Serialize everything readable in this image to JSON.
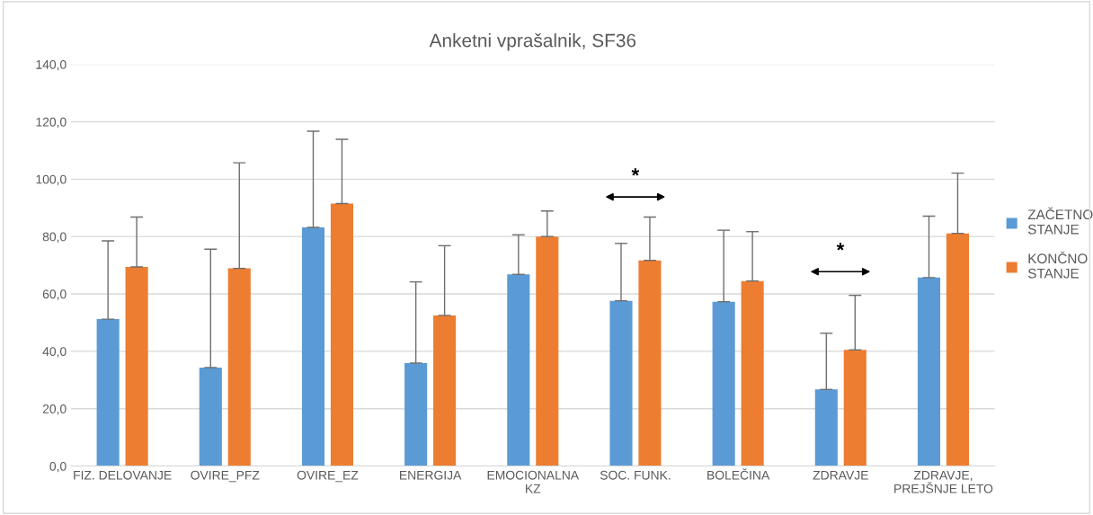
{
  "chart_data": {
    "type": "bar",
    "title": "Anketni vprašalnik, SF36",
    "categories": [
      "FIZ. DELOVANJE",
      "OVIRE_PFZ",
      "OVIRE_EZ",
      "ENERGIJA",
      "EMOCIONALNA\nKZ",
      "SOC. FUNK.",
      "BOLEČINA",
      "ZDRAVJE",
      "ZDRAVJE,\nPREJŠNJE LETO"
    ],
    "series": [
      {
        "name": "ZAČETNO\nSTANJE",
        "color": "#5b9bd5",
        "values": [
          51.2,
          34.3,
          83.2,
          35.9,
          66.8,
          57.6,
          57.3,
          26.7,
          65.7
        ],
        "errors": [
          [
            51.2,
            78.5
          ],
          [
            34.3,
            75.6
          ],
          [
            83.2,
            116.7
          ],
          [
            35.9,
            64.2
          ],
          [
            66.8,
            80.6
          ],
          [
            57.6,
            77.6
          ],
          [
            57.3,
            82.2
          ],
          [
            26.7,
            46.3
          ],
          [
            65.7,
            87.1
          ]
        ]
      },
      {
        "name": "KONČNO\nSTANJE",
        "color": "#ed7d31",
        "values": [
          69.4,
          68.9,
          91.5,
          52.5,
          80.0,
          71.7,
          64.5,
          40.5,
          81.1
        ],
        "errors": [
          [
            69.4,
            86.8
          ],
          [
            68.9,
            105.7
          ],
          [
            91.5,
            113.9
          ],
          [
            52.5,
            76.8
          ],
          [
            80.0,
            88.9
          ],
          [
            71.7,
            86.8
          ],
          [
            64.5,
            81.7
          ],
          [
            40.5,
            59.5
          ],
          [
            81.1,
            102.1
          ]
        ]
      }
    ],
    "ylim": [
      0,
      140
    ],
    "yticks": [
      {
        "value": 0,
        "label": "0,0"
      },
      {
        "value": 20,
        "label": "20,0"
      },
      {
        "value": 40,
        "label": "40,0"
      },
      {
        "value": 60,
        "label": "60,0"
      },
      {
        "value": 80,
        "label": "80,0"
      },
      {
        "value": 100,
        "label": "100,0"
      },
      {
        "value": 120,
        "label": "120,0"
      },
      {
        "value": 140,
        "label": "140,0"
      }
    ],
    "grid": "y",
    "legend": "right",
    "annotations": [
      "*",
      "*"
    ]
  }
}
